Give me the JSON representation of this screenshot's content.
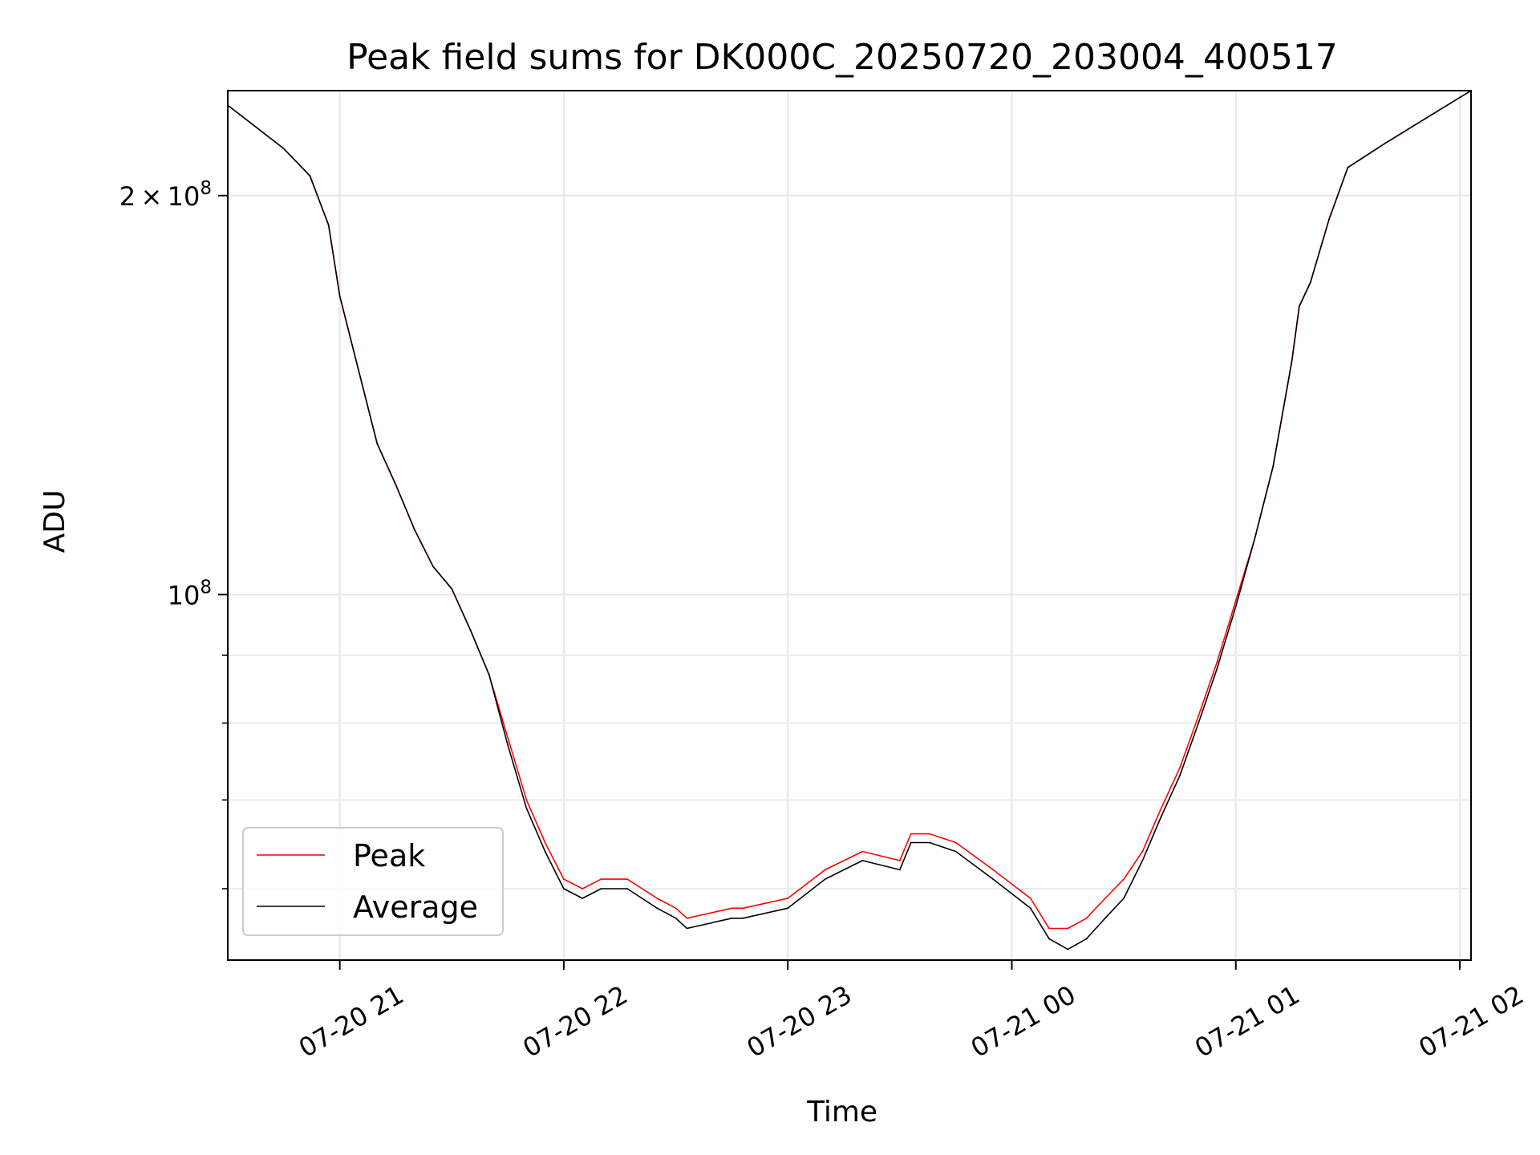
{
  "chart_data": {
    "type": "line",
    "title": "Peak field sums for DK000C_20250720_203004_400517",
    "xlabel": "Time",
    "ylabel": "ADU",
    "y_scale": "log",
    "ylim": [
      53000000,
      240000000
    ],
    "xlim": [
      "2025-07-20T20:30",
      "2025-07-21T02:03"
    ],
    "x_ticks": [
      {
        "value": "2025-07-20T21:00",
        "label": "07-20 21"
      },
      {
        "value": "2025-07-20T22:00",
        "label": "07-20 22"
      },
      {
        "value": "2025-07-20T23:00",
        "label": "07-20 23"
      },
      {
        "value": "2025-07-21T00:00",
        "label": "07-21 00"
      },
      {
        "value": "2025-07-21T01:00",
        "label": "07-21 01"
      },
      {
        "value": "2025-07-21T02:00",
        "label": "07-21 02"
      }
    ],
    "y_major_ticks": [
      {
        "value": 200000000,
        "label_coef": "2",
        "label_sep": "×",
        "label_base": "10",
        "label_exp": "8"
      },
      {
        "value": 100000000,
        "label_coef": "",
        "label_sep": "",
        "label_base": "10",
        "label_exp": "8"
      }
    ],
    "y_minor_ticks": [
      60000000,
      70000000,
      80000000,
      90000000
    ],
    "grid": true,
    "legend_position": "lower-left",
    "series": [
      {
        "name": "Peak",
        "color": "#ff0000",
        "x": [
          "2025-07-20T20:30",
          "2025-07-20T20:45",
          "2025-07-20T20:52",
          "2025-07-20T20:57",
          "2025-07-20T21:00",
          "2025-07-20T21:10",
          "2025-07-20T21:15",
          "2025-07-20T21:20",
          "2025-07-20T21:25",
          "2025-07-20T21:30",
          "2025-07-20T21:35",
          "2025-07-20T21:40",
          "2025-07-20T21:45",
          "2025-07-20T21:50",
          "2025-07-20T21:55",
          "2025-07-20T22:00",
          "2025-07-20T22:05",
          "2025-07-20T22:10",
          "2025-07-20T22:17",
          "2025-07-20T22:25",
          "2025-07-20T22:30",
          "2025-07-20T22:33",
          "2025-07-20T22:45",
          "2025-07-20T22:48",
          "2025-07-20T23:00",
          "2025-07-20T23:10",
          "2025-07-20T23:20",
          "2025-07-20T23:30",
          "2025-07-20T23:33",
          "2025-07-20T23:38",
          "2025-07-20T23:45",
          "2025-07-20T23:55",
          "2025-07-21T00:05",
          "2025-07-21T00:10",
          "2025-07-21T00:15",
          "2025-07-21T00:20",
          "2025-07-21T00:25",
          "2025-07-21T00:30",
          "2025-07-21T00:35",
          "2025-07-21T00:40",
          "2025-07-21T00:45",
          "2025-07-21T00:50",
          "2025-07-21T00:55",
          "2025-07-21T01:00",
          "2025-07-21T01:05",
          "2025-07-21T01:10",
          "2025-07-21T01:15",
          "2025-07-21T01:17",
          "2025-07-21T01:20",
          "2025-07-21T01:25",
          "2025-07-21T01:30",
          "2025-07-21T01:40",
          "2025-07-21T02:03"
        ],
        "y": [
          234000000,
          217000000,
          207000000,
          190000000,
          168000000,
          130000000,
          121000000,
          112000000,
          105000000,
          101000000,
          94000000,
          87000000,
          78000000,
          70000000,
          65000000,
          61000000,
          60000000,
          61000000,
          61000000,
          59000000,
          58000000,
          57000000,
          58000000,
          58000000,
          59000000,
          62000000,
          64000000,
          63000000,
          66000000,
          66000000,
          65000000,
          62000000,
          59000000,
          56000000,
          56000000,
          57000000,
          59000000,
          61000000,
          64000000,
          69000000,
          74000000,
          81000000,
          89000000,
          99000000,
          110000000,
          125000000,
          150000000,
          165000000,
          172000000,
          192000000,
          210000000,
          219000000,
          240000000
        ]
      },
      {
        "name": "Average",
        "color": "#000000",
        "x": [
          "2025-07-20T20:30",
          "2025-07-20T20:45",
          "2025-07-20T20:52",
          "2025-07-20T20:57",
          "2025-07-20T21:00",
          "2025-07-20T21:10",
          "2025-07-20T21:15",
          "2025-07-20T21:20",
          "2025-07-20T21:25",
          "2025-07-20T21:30",
          "2025-07-20T21:35",
          "2025-07-20T21:40",
          "2025-07-20T21:45",
          "2025-07-20T21:50",
          "2025-07-20T21:55",
          "2025-07-20T22:00",
          "2025-07-20T22:05",
          "2025-07-20T22:10",
          "2025-07-20T22:17",
          "2025-07-20T22:25",
          "2025-07-20T22:30",
          "2025-07-20T22:33",
          "2025-07-20T22:45",
          "2025-07-20T22:48",
          "2025-07-20T23:00",
          "2025-07-20T23:10",
          "2025-07-20T23:20",
          "2025-07-20T23:30",
          "2025-07-20T23:33",
          "2025-07-20T23:38",
          "2025-07-20T23:45",
          "2025-07-20T23:55",
          "2025-07-21T00:05",
          "2025-07-21T00:10",
          "2025-07-21T00:15",
          "2025-07-21T00:20",
          "2025-07-21T00:25",
          "2025-07-21T00:30",
          "2025-07-21T00:35",
          "2025-07-21T00:40",
          "2025-07-21T00:45",
          "2025-07-21T00:50",
          "2025-07-21T00:55",
          "2025-07-21T01:00",
          "2025-07-21T01:05",
          "2025-07-21T01:10",
          "2025-07-21T01:15",
          "2025-07-21T01:17",
          "2025-07-21T01:20",
          "2025-07-21T01:25",
          "2025-07-21T01:30",
          "2025-07-21T01:40",
          "2025-07-21T02:03"
        ],
        "y": [
          234000000,
          217000000,
          207000000,
          190000000,
          168000000,
          130000000,
          121000000,
          112000000,
          105000000,
          101000000,
          94000000,
          87000000,
          77000000,
          69000000,
          64000000,
          60000000,
          59000000,
          60000000,
          60000000,
          58000000,
          57000000,
          56000000,
          57000000,
          57000000,
          58000000,
          61000000,
          63000000,
          62000000,
          65000000,
          65000000,
          64000000,
          61000000,
          58000000,
          55000000,
          54000000,
          55000000,
          57000000,
          59000000,
          63000000,
          68000000,
          73000000,
          80000000,
          88000000,
          98000000,
          110000000,
          125000000,
          150000000,
          165000000,
          172000000,
          192000000,
          210000000,
          219000000,
          240000000
        ]
      }
    ]
  }
}
